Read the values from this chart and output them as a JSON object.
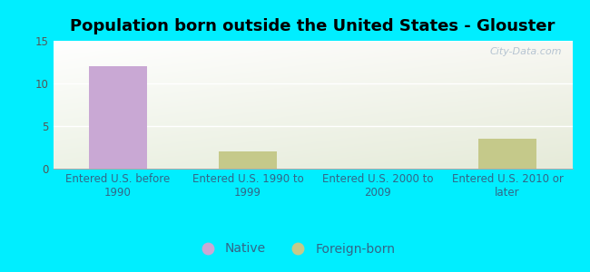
{
  "title": "Population born outside the United States - Glouster",
  "categories": [
    "Entered U.S. before\n1990",
    "Entered U.S. 1990 to\n1999",
    "Entered U.S. 2000 to\n2009",
    "Entered U.S. 2010 or\nlater"
  ],
  "native_values": [
    12,
    0,
    0,
    0
  ],
  "foreign_values": [
    0,
    2,
    0,
    3.5
  ],
  "native_color": "#c9a8d4",
  "foreign_color": "#c5c98a",
  "ylim": [
    0,
    15
  ],
  "yticks": [
    0,
    5,
    10,
    15
  ],
  "bg_color": "#00eeff",
  "watermark": "City-Data.com",
  "legend_native": "Native",
  "legend_foreign": "Foreign-born",
  "title_fontsize": 13,
  "tick_fontsize": 8.5
}
